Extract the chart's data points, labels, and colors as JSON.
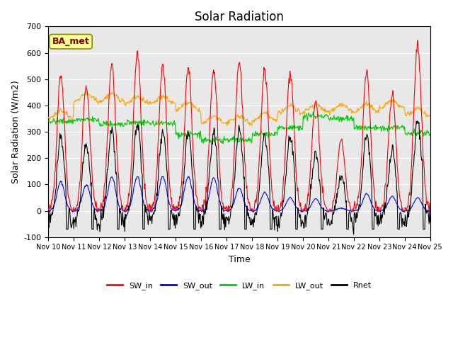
{
  "title": "Solar Radiation",
  "xlabel": "Time",
  "ylabel": "Solar Radiation (W/m2)",
  "ylim": [
    -100,
    700
  ],
  "annotation": "BA_met",
  "tick_labels": [
    "Nov 10",
    "Nov 11",
    "Nov 12",
    "Nov 13",
    "Nov 14",
    "Nov 15",
    "Nov 16",
    "Nov 17",
    "Nov 18",
    "Nov 19",
    "Nov 20",
    "Nov 21",
    "Nov 22",
    "Nov 23",
    "Nov 24",
    "Nov 25"
  ],
  "legend_entries": [
    "SW_in",
    "SW_out",
    "LW_in",
    "LW_out",
    "Rnet"
  ],
  "colors": {
    "SW_in": "#ff0000",
    "SW_out": "#0000ff",
    "LW_in": "#00cc00",
    "LW_out": "#ffa500",
    "Rnet": "#000000"
  },
  "sw_in_peaks": [
    520,
    470,
    560,
    600,
    555,
    545,
    540,
    570,
    540,
    525,
    415,
    270,
    530,
    440,
    630
  ],
  "sw_out_peaks": [
    110,
    100,
    130,
    130,
    130,
    130,
    125,
    85,
    70,
    50,
    45,
    10,
    65,
    55,
    50
  ],
  "lw_in_means": [
    340,
    345,
    330,
    335,
    330,
    290,
    268,
    268,
    290,
    315,
    360,
    350,
    315,
    315,
    295
  ],
  "lw_out_means": [
    350,
    415,
    415,
    405,
    405,
    380,
    330,
    330,
    340,
    370,
    375,
    375,
    375,
    390,
    360
  ],
  "background_color": "#e8e8e8",
  "title_fontsize": 12
}
